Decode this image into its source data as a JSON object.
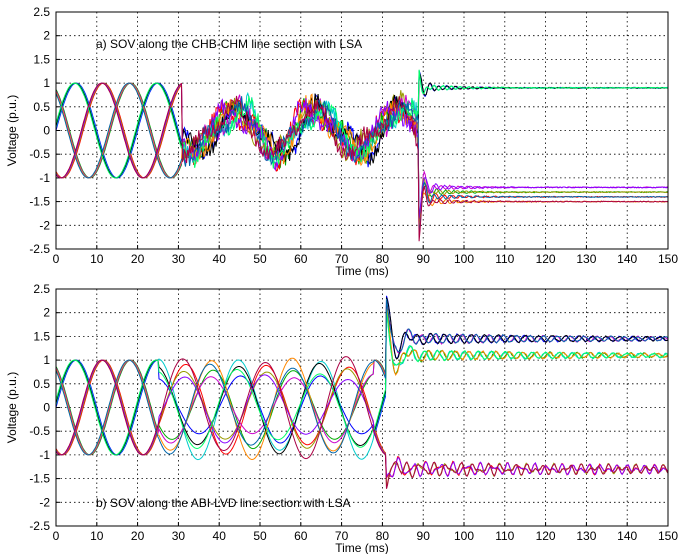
{
  "chart_data": [
    {
      "type": "line",
      "title": "a) SOV along the CHB-CHM line section with LSA",
      "xlabel": "Time (ms)",
      "ylabel": "Voltage (p.u.)",
      "xlim": [
        0,
        150
      ],
      "ylim": [
        -2.5,
        2.5
      ],
      "xticks": [
        "0",
        "10",
        "20",
        "30",
        "40",
        "50",
        "60",
        "70",
        "80",
        "90",
        "100",
        "110",
        "120",
        "130",
        "140",
        "150"
      ],
      "yticks": [
        "2.5",
        "2",
        "1.5",
        "1",
        "0.5",
        "0",
        "-0.5",
        "-1",
        "-1.5",
        "-2",
        "-2.5"
      ],
      "grid": true,
      "event_times_ms": {
        "line_energization_start": 31,
        "fault_clearing": 89
      },
      "pre_event_amplitude": 1.0,
      "post_event_levels": {
        "phase_high": 0.9,
        "phases_low": [
          -1.2,
          -1.3,
          -1.4,
          -1.5
        ]
      },
      "transient_peak": -2.1,
      "series_colors": [
        "#0000ff",
        "#00aa00",
        "#ff0000",
        "#00cccc",
        "#cc00cc",
        "#999900",
        "#000000",
        "#ff8800",
        "#8800ff",
        "#00ff66",
        "#0066aa",
        "#aa0044"
      ]
    },
    {
      "type": "line",
      "title": "b) SOV along the ABI-LVD line section with LSA",
      "xlabel": "Time (ms)",
      "ylabel": "Voltage (p.u.)",
      "xlim": [
        0,
        150
      ],
      "ylim": [
        -2.5,
        2.5
      ],
      "xticks": [
        "0",
        "10",
        "20",
        "30",
        "40",
        "50",
        "60",
        "70",
        "80",
        "90",
        "100",
        "110",
        "120",
        "130",
        "140",
        "150"
      ],
      "yticks": [
        "2.5",
        "2",
        "1.5",
        "1",
        "0.5",
        "0",
        "-0.5",
        "-1",
        "-1.5",
        "-2",
        "-2.5"
      ],
      "grid": true,
      "event_times_ms": {
        "fault_clearing": 81
      },
      "pre_event_amplitude": 1.0,
      "post_event_levels": {
        "phases_high": [
          1.1,
          1.45
        ],
        "phase_low": -1.3
      },
      "transient_peak": 2.35,
      "series_colors": [
        "#0000ff",
        "#00aa00",
        "#ff0000",
        "#00cccc",
        "#cc00cc",
        "#999900",
        "#000000",
        "#ff8800",
        "#8800ff",
        "#00ff66",
        "#0066aa",
        "#aa0044"
      ]
    }
  ]
}
